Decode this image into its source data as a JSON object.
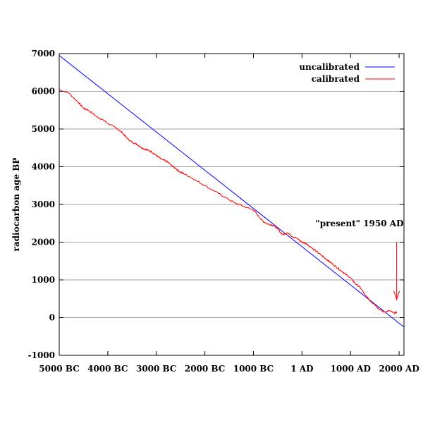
{
  "chart_data": {
    "type": "line",
    "title": "",
    "xlabel": "",
    "ylabel": "radiocarbon age BP",
    "xlim": [
      -5000,
      2100
    ],
    "ylim": [
      -1000,
      7000
    ],
    "grid": "horizontal",
    "legend_position": "top-right",
    "x_ticks": [
      {
        "value": -5000,
        "label": "5000 BC"
      },
      {
        "value": -4000,
        "label": "4000 BC"
      },
      {
        "value": -3000,
        "label": "3000 BC"
      },
      {
        "value": -2000,
        "label": "2000 BC"
      },
      {
        "value": -1000,
        "label": "1000 BC"
      },
      {
        "value": 0,
        "label": "1 AD"
      },
      {
        "value": 1000,
        "label": "1000 AD"
      },
      {
        "value": 2000,
        "label": "2000 AD"
      }
    ],
    "y_ticks": [
      {
        "value": -1000,
        "label": "-1000"
      },
      {
        "value": 0,
        "label": "0"
      },
      {
        "value": 1000,
        "label": "1000"
      },
      {
        "value": 2000,
        "label": "2000"
      },
      {
        "value": 3000,
        "label": "3000"
      },
      {
        "value": 4000,
        "label": "4000"
      },
      {
        "value": 5000,
        "label": "5000"
      },
      {
        "value": 6000,
        "label": "6000"
      },
      {
        "value": 7000,
        "label": "7000"
      }
    ],
    "series": [
      {
        "name": "uncalibrated",
        "color": "#0000ff",
        "x": [
          -5000,
          2100
        ],
        "y": [
          6950,
          -250
        ]
      },
      {
        "name": "calibrated",
        "color": "#ff0000",
        "x": [
          -5000,
          -4800,
          -4600,
          -4500,
          -4400,
          -4200,
          -4100,
          -4000,
          -3800,
          -3700,
          -3600,
          -3500,
          -3400,
          -3300,
          -3200,
          -3100,
          -3000,
          -2900,
          -2800,
          -2700,
          -2600,
          -2500,
          -2400,
          -2200,
          -2000,
          -1800,
          -1600,
          -1400,
          -1200,
          -1000,
          -900,
          -800,
          -700,
          -600,
          -500,
          -400,
          -300,
          -200,
          -100,
          0,
          100,
          200,
          300,
          400,
          500,
          600,
          700,
          800,
          900,
          1000,
          1100,
          1200,
          1300,
          1400,
          1500,
          1600,
          1700,
          1800,
          1900,
          1950
        ],
        "y": [
          6050,
          5950,
          5700,
          5550,
          5500,
          5300,
          5250,
          5150,
          5000,
          4900,
          4750,
          4650,
          4600,
          4500,
          4450,
          4400,
          4300,
          4200,
          4150,
          4050,
          3950,
          3850,
          3800,
          3650,
          3500,
          3350,
          3200,
          3050,
          2950,
          2850,
          2700,
          2550,
          2480,
          2450,
          2350,
          2200,
          2250,
          2150,
          2100,
          2000,
          1950,
          1850,
          1750,
          1650,
          1550,
          1450,
          1350,
          1250,
          1150,
          1050,
          900,
          800,
          600,
          450,
          350,
          200,
          150,
          180,
          120,
          150
        ]
      }
    ],
    "annotations": [
      {
        "text": "\"present\" 1950 AD",
        "arrow_x": 1950,
        "arrow_from_y": 2000,
        "arrow_to_y": 480,
        "color": "#ff0000"
      }
    ]
  }
}
